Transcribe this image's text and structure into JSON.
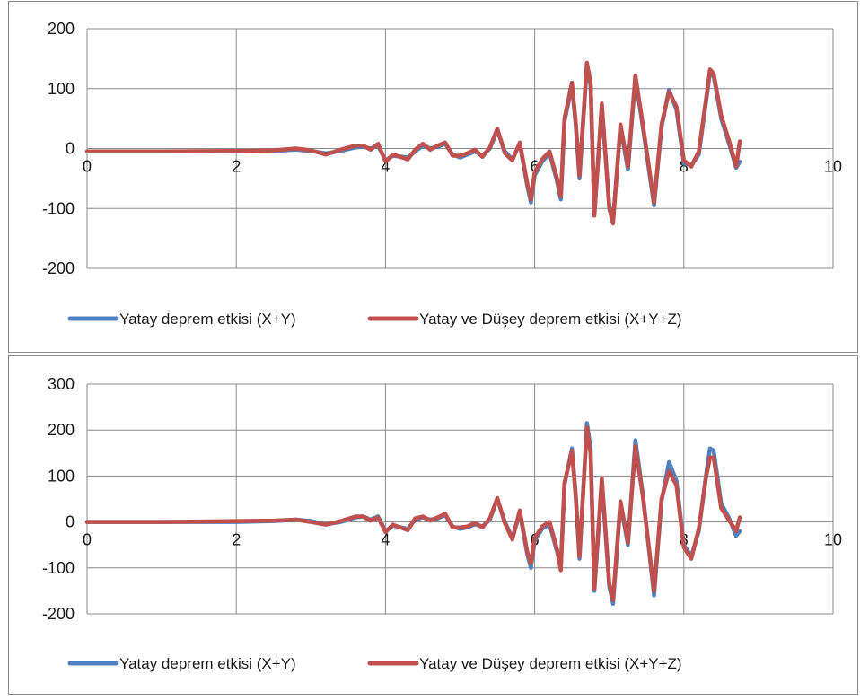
{
  "colors": {
    "series_blue": "#4f81bd",
    "series_red": "#c0504d",
    "grid": "#8a8a8a",
    "border": "#8c8c8c"
  },
  "chart_data": [
    {
      "type": "line",
      "title": "",
      "xlabel": "",
      "ylabel": "",
      "xlim": [
        0,
        10
      ],
      "ylim": [
        -200,
        200
      ],
      "x_ticks": [
        "0",
        "2",
        "4",
        "6",
        "8",
        "10"
      ],
      "y_ticks": [
        "200",
        "100",
        "0",
        "-100",
        "-200"
      ],
      "grid": true,
      "legend_position": "bottom",
      "series": [
        {
          "name": "Yatay deprem etkisi (X+Y)",
          "color": "#4f81bd",
          "points": [
            [
              0,
              -5
            ],
            [
              1,
              -5
            ],
            [
              2,
              -5
            ],
            [
              2.5,
              -4
            ],
            [
              2.8,
              -2
            ],
            [
              3.0,
              -4
            ],
            [
              3.2,
              -8
            ],
            [
              3.4,
              -4
            ],
            [
              3.6,
              2
            ],
            [
              3.7,
              3
            ],
            [
              3.8,
              0
            ],
            [
              3.9,
              5
            ],
            [
              4.0,
              -20
            ],
            [
              4.1,
              -12
            ],
            [
              4.3,
              -15
            ],
            [
              4.4,
              -5
            ],
            [
              4.5,
              5
            ],
            [
              4.6,
              0
            ],
            [
              4.7,
              3
            ],
            [
              4.8,
              8
            ],
            [
              4.9,
              -10
            ],
            [
              5.0,
              -15
            ],
            [
              5.1,
              -10
            ],
            [
              5.2,
              -5
            ],
            [
              5.3,
              -12
            ],
            [
              5.4,
              0
            ],
            [
              5.5,
              30
            ],
            [
              5.6,
              -5
            ],
            [
              5.7,
              -18
            ],
            [
              5.8,
              8
            ],
            [
              5.9,
              -62
            ],
            [
              5.95,
              -90
            ],
            [
              6.0,
              -45
            ],
            [
              6.1,
              -22
            ],
            [
              6.2,
              -8
            ],
            [
              6.3,
              -55
            ],
            [
              6.35,
              -85
            ],
            [
              6.4,
              45
            ],
            [
              6.5,
              105
            ],
            [
              6.55,
              40
            ],
            [
              6.6,
              -50
            ],
            [
              6.7,
              138
            ],
            [
              6.75,
              105
            ],
            [
              6.8,
              -108
            ],
            [
              6.9,
              68
            ],
            [
              7.0,
              -95
            ],
            [
              7.05,
              -120
            ],
            [
              7.15,
              35
            ],
            [
              7.25,
              -35
            ],
            [
              7.35,
              118
            ],
            [
              7.45,
              35
            ],
            [
              7.6,
              -95
            ],
            [
              7.7,
              35
            ],
            [
              7.8,
              98
            ],
            [
              7.9,
              65
            ],
            [
              8.0,
              -25
            ],
            [
              8.1,
              -28
            ],
            [
              8.2,
              -10
            ],
            [
              8.3,
              80
            ],
            [
              8.35,
              128
            ],
            [
              8.4,
              120
            ],
            [
              8.5,
              50
            ],
            [
              8.6,
              10
            ],
            [
              8.7,
              -32
            ],
            [
              8.75,
              -22
            ]
          ]
        },
        {
          "name": "Yatay ve Düşey deprem etkisi (X+Y+Z)",
          "color": "#c0504d",
          "points": [
            [
              0,
              -5
            ],
            [
              1,
              -5
            ],
            [
              2,
              -4
            ],
            [
              2.5,
              -3
            ],
            [
              2.8,
              0
            ],
            [
              3.0,
              -3
            ],
            [
              3.2,
              -10
            ],
            [
              3.4,
              -2
            ],
            [
              3.6,
              5
            ],
            [
              3.7,
              5
            ],
            [
              3.8,
              -2
            ],
            [
              3.9,
              8
            ],
            [
              4.0,
              -22
            ],
            [
              4.1,
              -10
            ],
            [
              4.3,
              -18
            ],
            [
              4.4,
              -2
            ],
            [
              4.5,
              8
            ],
            [
              4.6,
              -2
            ],
            [
              4.7,
              5
            ],
            [
              4.8,
              10
            ],
            [
              4.9,
              -12
            ],
            [
              5.0,
              -12
            ],
            [
              5.1,
              -8
            ],
            [
              5.2,
              -2
            ],
            [
              5.3,
              -14
            ],
            [
              5.4,
              2
            ],
            [
              5.5,
              33
            ],
            [
              5.6,
              -8
            ],
            [
              5.7,
              -20
            ],
            [
              5.8,
              10
            ],
            [
              5.9,
              -58
            ],
            [
              5.95,
              -85
            ],
            [
              6.0,
              -40
            ],
            [
              6.1,
              -18
            ],
            [
              6.2,
              -5
            ],
            [
              6.3,
              -50
            ],
            [
              6.35,
              -80
            ],
            [
              6.4,
              50
            ],
            [
              6.5,
              110
            ],
            [
              6.55,
              45
            ],
            [
              6.6,
              -45
            ],
            [
              6.7,
              143
            ],
            [
              6.75,
              110
            ],
            [
              6.8,
              -112
            ],
            [
              6.9,
              75
            ],
            [
              7.0,
              -100
            ],
            [
              7.05,
              -125
            ],
            [
              7.15,
              40
            ],
            [
              7.25,
              -30
            ],
            [
              7.35,
              122
            ],
            [
              7.45,
              40
            ],
            [
              7.6,
              -90
            ],
            [
              7.7,
              40
            ],
            [
              7.8,
              95
            ],
            [
              7.9,
              70
            ],
            [
              8.0,
              -20
            ],
            [
              8.1,
              -30
            ],
            [
              8.2,
              -5
            ],
            [
              8.3,
              85
            ],
            [
              8.35,
              132
            ],
            [
              8.4,
              125
            ],
            [
              8.5,
              55
            ],
            [
              8.6,
              15
            ],
            [
              8.7,
              -30
            ],
            [
              8.75,
              12
            ]
          ]
        }
      ]
    },
    {
      "type": "line",
      "title": "",
      "xlabel": "",
      "ylabel": "",
      "xlim": [
        0,
        10
      ],
      "ylim": [
        -200,
        300
      ],
      "x_ticks": [
        "0",
        "2",
        "4",
        "6",
        "8",
        "10"
      ],
      "y_ticks": [
        "300",
        "200",
        "100",
        "0",
        "-100",
        "-200"
      ],
      "grid": true,
      "legend_position": "bottom",
      "series": [
        {
          "name": "Yatay deprem etkisi (X+Y)",
          "color": "#4f81bd",
          "points": [
            [
              0,
              0
            ],
            [
              1,
              0
            ],
            [
              2,
              0
            ],
            [
              2.5,
              2
            ],
            [
              2.8,
              5
            ],
            [
              3.0,
              2
            ],
            [
              3.2,
              -5
            ],
            [
              3.4,
              0
            ],
            [
              3.6,
              10
            ],
            [
              3.7,
              12
            ],
            [
              3.8,
              5
            ],
            [
              3.9,
              12
            ],
            [
              4.0,
              -20
            ],
            [
              4.1,
              -8
            ],
            [
              4.3,
              -15
            ],
            [
              4.4,
              5
            ],
            [
              4.5,
              10
            ],
            [
              4.6,
              5
            ],
            [
              4.7,
              8
            ],
            [
              4.8,
              15
            ],
            [
              4.9,
              -10
            ],
            [
              5.0,
              -15
            ],
            [
              5.1,
              -12
            ],
            [
              5.2,
              -5
            ],
            [
              5.3,
              -10
            ],
            [
              5.4,
              5
            ],
            [
              5.5,
              50
            ],
            [
              5.6,
              0
            ],
            [
              5.7,
              -35
            ],
            [
              5.8,
              20
            ],
            [
              5.9,
              -70
            ],
            [
              5.95,
              -100
            ],
            [
              6.0,
              -40
            ],
            [
              6.1,
              -15
            ],
            [
              6.2,
              -5
            ],
            [
              6.3,
              -65
            ],
            [
              6.35,
              -95
            ],
            [
              6.4,
              80
            ],
            [
              6.5,
              160
            ],
            [
              6.55,
              60
            ],
            [
              6.6,
              -80
            ],
            [
              6.7,
              215
            ],
            [
              6.75,
              160
            ],
            [
              6.8,
              -150
            ],
            [
              6.9,
              90
            ],
            [
              7.0,
              -140
            ],
            [
              7.05,
              -178
            ],
            [
              7.15,
              40
            ],
            [
              7.25,
              -50
            ],
            [
              7.35,
              178
            ],
            [
              7.45,
              60
            ],
            [
              7.6,
              -160
            ],
            [
              7.7,
              45
            ],
            [
              7.8,
              130
            ],
            [
              7.9,
              90
            ],
            [
              8.0,
              -50
            ],
            [
              8.1,
              -75
            ],
            [
              8.2,
              -20
            ],
            [
              8.3,
              105
            ],
            [
              8.35,
              160
            ],
            [
              8.4,
              155
            ],
            [
              8.5,
              40
            ],
            [
              8.6,
              10
            ],
            [
              8.7,
              -30
            ],
            [
              8.75,
              -20
            ]
          ]
        },
        {
          "name": "Yatay ve Düşey deprem etkisi (X+Y+Z)",
          "color": "#c0504d",
          "points": [
            [
              0,
              0
            ],
            [
              1,
              0
            ],
            [
              2,
              2
            ],
            [
              2.5,
              3
            ],
            [
              2.8,
              5
            ],
            [
              3.0,
              0
            ],
            [
              3.2,
              -6
            ],
            [
              3.4,
              2
            ],
            [
              3.6,
              12
            ],
            [
              3.7,
              12
            ],
            [
              3.8,
              3
            ],
            [
              3.9,
              10
            ],
            [
              4.0,
              -22
            ],
            [
              4.1,
              -6
            ],
            [
              4.3,
              -18
            ],
            [
              4.4,
              8
            ],
            [
              4.5,
              12
            ],
            [
              4.6,
              3
            ],
            [
              4.7,
              10
            ],
            [
              4.8,
              18
            ],
            [
              4.9,
              -12
            ],
            [
              5.0,
              -12
            ],
            [
              5.1,
              -10
            ],
            [
              5.2,
              -2
            ],
            [
              5.3,
              -12
            ],
            [
              5.4,
              8
            ],
            [
              5.5,
              52
            ],
            [
              5.6,
              -3
            ],
            [
              5.7,
              -38
            ],
            [
              5.8,
              25
            ],
            [
              5.9,
              -65
            ],
            [
              5.95,
              -90
            ],
            [
              6.0,
              -35
            ],
            [
              6.1,
              -10
            ],
            [
              6.2,
              0
            ],
            [
              6.3,
              -60
            ],
            [
              6.35,
              -105
            ],
            [
              6.4,
              85
            ],
            [
              6.5,
              155
            ],
            [
              6.55,
              55
            ],
            [
              6.6,
              -75
            ],
            [
              6.7,
              205
            ],
            [
              6.75,
              150
            ],
            [
              6.8,
              -145
            ],
            [
              6.9,
              95
            ],
            [
              7.0,
              -135
            ],
            [
              7.05,
              -170
            ],
            [
              7.15,
              45
            ],
            [
              7.25,
              -45
            ],
            [
              7.35,
              165
            ],
            [
              7.45,
              55
            ],
            [
              7.6,
              -150
            ],
            [
              7.7,
              50
            ],
            [
              7.8,
              110
            ],
            [
              7.9,
              80
            ],
            [
              8.0,
              -55
            ],
            [
              8.1,
              -80
            ],
            [
              8.2,
              -15
            ],
            [
              8.3,
              100
            ],
            [
              8.35,
              140
            ],
            [
              8.4,
              140
            ],
            [
              8.5,
              30
            ],
            [
              8.6,
              5
            ],
            [
              8.7,
              -20
            ],
            [
              8.75,
              10
            ]
          ]
        }
      ]
    }
  ]
}
